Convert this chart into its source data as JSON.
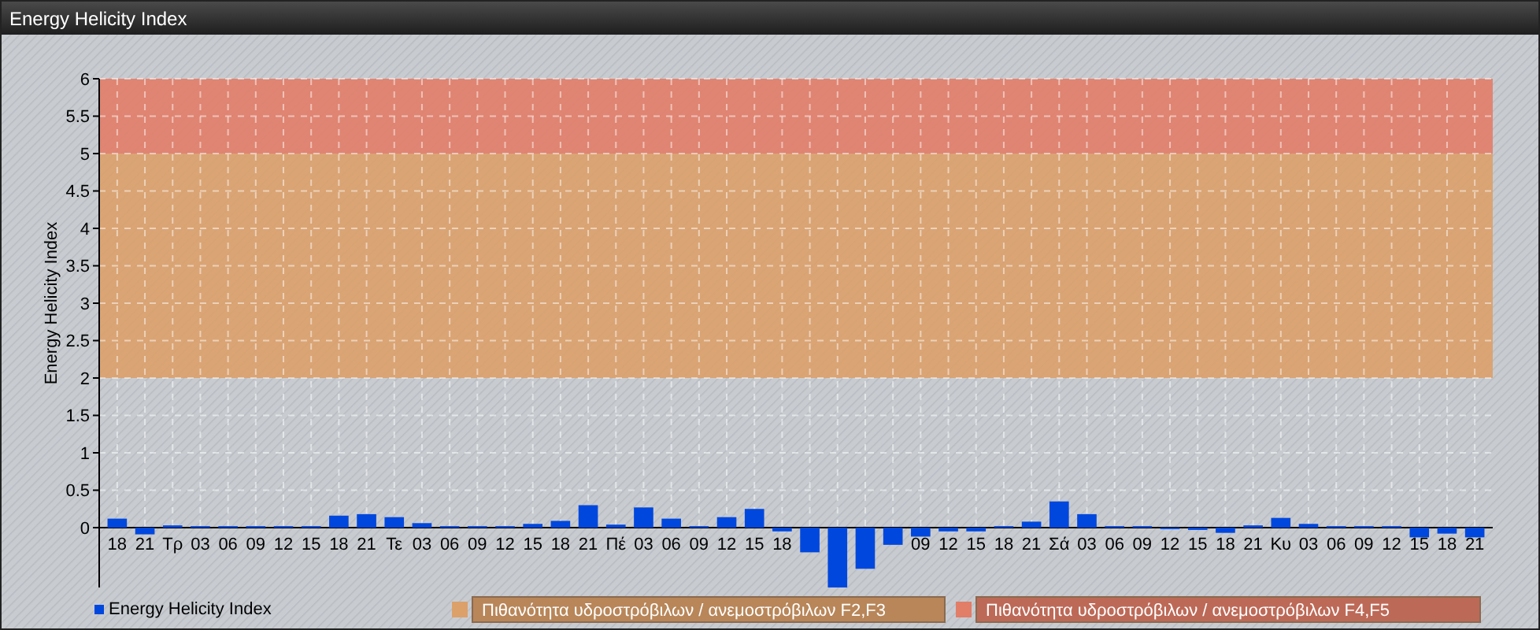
{
  "chart_data": {
    "type": "bar",
    "title": "Energy Helicity Index",
    "ylabel": "Energy Helicity Index",
    "categories": [
      "18",
      "21",
      "Τρ",
      "03",
      "06",
      "09",
      "12",
      "15",
      "18",
      "21",
      "Τε",
      "03",
      "06",
      "09",
      "12",
      "15",
      "18",
      "21",
      "Πέ",
      "03",
      "06",
      "09",
      "12",
      "15",
      "18",
      null,
      null,
      null,
      null,
      "09",
      "12",
      "15",
      "18",
      "21",
      "Σά",
      "03",
      "06",
      "09",
      "12",
      "15",
      "18",
      "21",
      "Κυ",
      "03",
      "06",
      "09",
      "12",
      "15",
      "18",
      "21"
    ],
    "series": [
      {
        "name": "Energy Helicity Index",
        "color": "#0047dd",
        "values": [
          0.12,
          -0.09,
          0.03,
          0.02,
          0.02,
          0.02,
          0.02,
          0.02,
          0.16,
          0.18,
          0.14,
          0.06,
          0.02,
          0.02,
          0.02,
          0.05,
          0.09,
          0.3,
          0.04,
          0.27,
          0.12,
          0.02,
          0.14,
          0.25,
          -0.05,
          -0.33,
          -0.8,
          -0.55,
          -0.23,
          -0.12,
          -0.05,
          -0.05,
          0.02,
          0.08,
          0.35,
          0.18,
          0.02,
          0.02,
          -0.02,
          -0.03,
          -0.07,
          0.03,
          0.13,
          0.05,
          0.02,
          0.02,
          0.02,
          -0.13,
          -0.08,
          -0.13
        ]
      }
    ],
    "ylim": [
      -0.8,
      6
    ],
    "yticks": [
      0,
      0.5,
      1,
      1.5,
      2,
      2.5,
      3,
      3.5,
      4,
      4.5,
      5,
      5.5,
      6
    ],
    "bands": [
      {
        "axis": "y",
        "from": 2,
        "to": 5,
        "label": "Πιθανότητα υδροστρόβιλων / ανεμοστρόβιλων F2,F3",
        "color": "#dca06a"
      },
      {
        "axis": "y",
        "from": 5,
        "to": 6,
        "label": "Πιθανότητα υδροστρόβιλων / ανεμοστρόβιλων F4,F5",
        "color": "#e27d68"
      }
    ],
    "grid": true,
    "legend": "bottom"
  }
}
